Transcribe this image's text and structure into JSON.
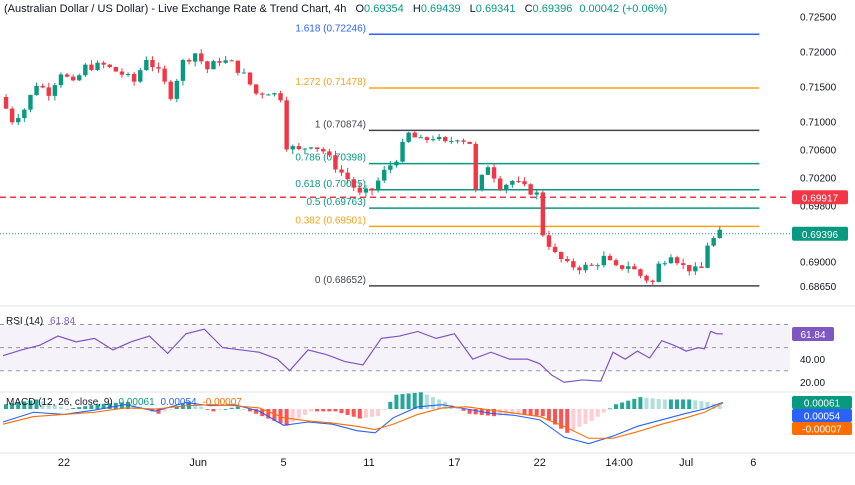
{
  "header": {
    "pair": "(Australian Dollar / US Dollar) - Live Exchange Rate & Trend Chart",
    "interval": "4h",
    "ohlc": [
      {
        "k": "O",
        "v": "0.69354"
      },
      {
        "k": "H",
        "v": "0.69439"
      },
      {
        "k": "L",
        "v": "0.69341"
      },
      {
        "k": "C",
        "v": "0.69396"
      }
    ],
    "change": "0.00042 (+0.06%)"
  },
  "colors": {
    "up": "#089981",
    "down": "#f23645",
    "rsi": "#7e57c2",
    "macd": "#2962ff",
    "signal": "#ff6d00",
    "fib_orange": "#f7a21b",
    "fib_teal": "#089981",
    "fib_blue": "#2962ff",
    "fib_gray": "#434651",
    "fib_cyan": "#00bcd4"
  },
  "rsi_label": {
    "name": "RSI (14)",
    "value": "61.84"
  },
  "macd_label": {
    "name": "MACD (12, 26, close, 9)",
    "v1": "0.00061",
    "v2": "0.00054",
    "v3": "-0.00007"
  },
  "chart_data": {
    "type": "candlestick",
    "title": "(Australian Dollar / US Dollar) - Live Exchange Rate & Trend Chart",
    "interval": "4h",
    "price_axis": {
      "ticks": [
        "0.72500",
        "0.72000",
        "0.71500",
        "0.71000",
        "0.70600",
        "0.70200",
        "0.69800",
        "0.69000",
        "0.68650"
      ],
      "tick_values": [
        0.725,
        0.72,
        0.715,
        0.71,
        0.706,
        0.702,
        0.698,
        0.69,
        0.6865
      ],
      "range": [
        0.6845,
        0.7265
      ]
    },
    "time_axis": {
      "ticks": [
        "22",
        "Jun",
        "5",
        "11",
        "17",
        "22",
        "14:00",
        "Jul",
        "6"
      ],
      "tick_bars": [
        10,
        32,
        46,
        60,
        74,
        88,
        101,
        112,
        123
      ]
    },
    "bars_total": 118,
    "price_path": [
      [
        0,
        0.7135
      ],
      [
        2,
        0.7102
      ],
      [
        4,
        0.7118
      ],
      [
        6,
        0.7154
      ],
      [
        8,
        0.7142
      ],
      [
        10,
        0.7171
      ],
      [
        12,
        0.7153
      ],
      [
        14,
        0.7178
      ],
      [
        17,
        0.718
      ],
      [
        20,
        0.7168
      ],
      [
        22,
        0.7157
      ],
      [
        24,
        0.7191
      ],
      [
        26,
        0.717
      ],
      [
        28,
        0.7138
      ],
      [
        30,
        0.7185
      ],
      [
        32,
        0.7198
      ],
      [
        34,
        0.7175
      ],
      [
        36,
        0.7188
      ],
      [
        38,
        0.7183
      ],
      [
        40,
        0.7166
      ],
      [
        42,
        0.714
      ],
      [
        44,
        0.7143
      ],
      [
        46,
        0.7135
      ],
      [
        47,
        0.7066
      ],
      [
        49,
        0.7058
      ],
      [
        51,
        0.7068
      ],
      [
        53,
        0.7058
      ],
      [
        55,
        0.7036
      ],
      [
        57,
        0.7018
      ],
      [
        59,
        0.6995
      ],
      [
        61,
        0.7002
      ],
      [
        63,
        0.7028
      ],
      [
        65,
        0.7048
      ],
      [
        67,
        0.7082
      ],
      [
        69,
        0.7072
      ],
      [
        71,
        0.7078
      ],
      [
        73,
        0.7068
      ],
      [
        75,
        0.7078
      ],
      [
        77,
        0.707
      ],
      [
        78,
        0.7
      ],
      [
        80,
        0.7038
      ],
      [
        82,
        0.7008
      ],
      [
        84,
        0.7015
      ],
      [
        86,
        0.7005
      ],
      [
        88,
        0.6996
      ],
      [
        89,
        0.694
      ],
      [
        91,
        0.691
      ],
      [
        93,
        0.6895
      ],
      [
        95,
        0.6892
      ],
      [
        97,
        0.6893
      ],
      [
        99,
        0.6905
      ],
      [
        101,
        0.689
      ],
      [
        103,
        0.6895
      ],
      [
        105,
        0.688
      ],
      [
        107,
        0.687
      ],
      [
        108,
        0.6895
      ],
      [
        110,
        0.6912
      ],
      [
        112,
        0.6893
      ],
      [
        114,
        0.6887
      ],
      [
        115,
        0.689
      ],
      [
        116,
        0.6925
      ],
      [
        117,
        0.6932
      ],
      [
        118,
        0.694
      ]
    ],
    "fib_levels": [
      {
        "label": "1.618 (0.72246)",
        "value": 0.72246,
        "color": "#2962ff"
      },
      {
        "label": "1.272 (0.71478)",
        "value": 0.71478,
        "color": "#f7a21b"
      },
      {
        "label": "1 (0.70874)",
        "value": 0.70874,
        "color": "#434651"
      },
      {
        "label": "0.786 (0.70398)",
        "value": 0.70398,
        "color": "#089981"
      },
      {
        "label": "0.618 (0.70025)",
        "value": 0.70025,
        "color": "#089981"
      },
      {
        "label": "0.5 (0.69763)",
        "value": 0.69763,
        "color": "#089981"
      },
      {
        "label": "0.382 (0.69501)",
        "value": 0.69501,
        "color": "#f7a21b"
      },
      {
        "label": "0 (0.68652)",
        "value": 0.68652,
        "color": "#434651"
      }
    ],
    "fib_start_bar": 60,
    "fib_end_bar": 124,
    "resistance": {
      "label": "0.69917",
      "value": 0.69917
    },
    "last_price": {
      "label": "0.69396",
      "value": 0.69396
    },
    "rsi": {
      "name": "RSI (14)",
      "value": 61.84,
      "ticks": [
        "40.00",
        "20.00"
      ],
      "tick_values": [
        40,
        20
      ],
      "range": [
        15,
        80
      ],
      "bands": [
        30,
        50,
        70
      ],
      "path": [
        [
          0,
          43
        ],
        [
          3,
          48
        ],
        [
          6,
          52
        ],
        [
          9,
          60
        ],
        [
          12,
          55
        ],
        [
          15,
          58
        ],
        [
          18,
          48
        ],
        [
          21,
          55
        ],
        [
          24,
          60
        ],
        [
          27,
          45
        ],
        [
          30,
          62
        ],
        [
          33,
          66
        ],
        [
          36,
          50
        ],
        [
          39,
          48
        ],
        [
          42,
          46
        ],
        [
          45,
          40
        ],
        [
          47,
          30
        ],
        [
          50,
          48
        ],
        [
          53,
          44
        ],
        [
          56,
          38
        ],
        [
          59,
          35
        ],
        [
          62,
          58
        ],
        [
          65,
          60
        ],
        [
          68,
          64
        ],
        [
          71,
          58
        ],
        [
          74,
          62
        ],
        [
          77,
          40
        ],
        [
          80,
          46
        ],
        [
          83,
          40
        ],
        [
          86,
          40
        ],
        [
          88,
          36
        ],
        [
          90,
          26
        ],
        [
          92,
          20
        ],
        [
          95,
          22
        ],
        [
          98,
          21
        ],
        [
          100,
          46
        ],
        [
          102,
          40
        ],
        [
          104,
          47
        ],
        [
          106,
          41
        ],
        [
          108,
          56
        ],
        [
          110,
          52
        ],
        [
          112,
          47
        ],
        [
          114,
          50
        ],
        [
          115,
          49
        ],
        [
          116,
          64
        ],
        [
          117,
          62
        ],
        [
          118,
          61.84
        ]
      ]
    },
    "macd": {
      "name": "MACD (12, 26, close, 9)",
      "values": [
        "0.00061",
        "0.00054",
        "-0.00007"
      ],
      "range": [
        -0.0036,
        0.0012
      ],
      "macd_path": [
        [
          0,
          -0.0012
        ],
        [
          5,
          -0.0003
        ],
        [
          10,
          -0.0005
        ],
        [
          15,
          -0.0001
        ],
        [
          20,
          0.0004
        ],
        [
          25,
          -0.0002
        ],
        [
          30,
          0.0006
        ],
        [
          34,
          0.0003
        ],
        [
          38,
          0.0004
        ],
        [
          42,
          -0.0002
        ],
        [
          46,
          -0.0015
        ],
        [
          50,
          -0.0012
        ],
        [
          54,
          -0.0014
        ],
        [
          58,
          -0.002
        ],
        [
          61,
          -0.0022
        ],
        [
          64,
          -0.0008
        ],
        [
          68,
          0.0002
        ],
        [
          72,
          0.0004
        ],
        [
          76,
          0.0
        ],
        [
          80,
          -0.0004
        ],
        [
          84,
          -0.0006
        ],
        [
          88,
          -0.001
        ],
        [
          92,
          -0.0026
        ],
        [
          96,
          -0.0032
        ],
        [
          100,
          -0.0025
        ],
        [
          104,
          -0.0016
        ],
        [
          108,
          -0.001
        ],
        [
          112,
          -0.0004
        ],
        [
          115,
          0.0
        ],
        [
          118,
          0.00061
        ]
      ],
      "signal_path": [
        [
          0,
          -0.0014
        ],
        [
          5,
          -0.0007
        ],
        [
          10,
          -0.0005
        ],
        [
          15,
          -0.0003
        ],
        [
          20,
          0.0001
        ],
        [
          25,
          0.0
        ],
        [
          30,
          0.0003
        ],
        [
          34,
          0.0004
        ],
        [
          38,
          0.0003
        ],
        [
          42,
          0.0001
        ],
        [
          46,
          -0.0008
        ],
        [
          50,
          -0.0011
        ],
        [
          54,
          -0.0013
        ],
        [
          58,
          -0.0016
        ],
        [
          61,
          -0.0019
        ],
        [
          64,
          -0.0014
        ],
        [
          68,
          -0.0005
        ],
        [
          72,
          0.0001
        ],
        [
          76,
          0.0002
        ],
        [
          80,
          -0.0001
        ],
        [
          84,
          -0.0004
        ],
        [
          88,
          -0.0007
        ],
        [
          92,
          -0.0016
        ],
        [
          96,
          -0.0027
        ],
        [
          100,
          -0.0027
        ],
        [
          104,
          -0.0021
        ],
        [
          108,
          -0.0014
        ],
        [
          112,
          -0.0008
        ],
        [
          115,
          -0.0003
        ],
        [
          118,
          0.00054
        ]
      ]
    }
  }
}
